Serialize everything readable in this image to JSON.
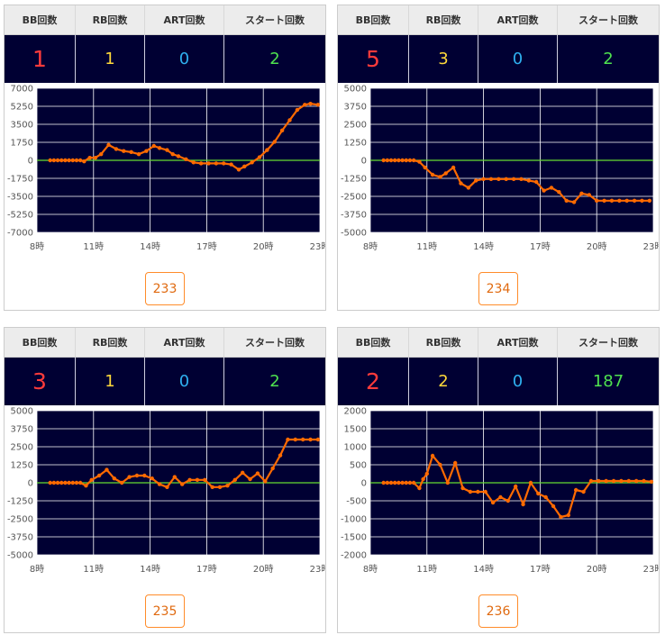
{
  "headers": {
    "bb": "BB回数",
    "rb": "RB回数",
    "art": "ART回数",
    "start": "スタート回数"
  },
  "colors": {
    "plot_bg": "#000033",
    "line": "#ff6a00",
    "zero_line": "#66dd33",
    "grid": "#ffffff",
    "header_bg": "#ececec",
    "button_border": "#ff8c2a"
  },
  "machines": [
    {
      "bb": "1",
      "rb": "1",
      "art": "0",
      "start": "2",
      "number": "233",
      "chart_data": {
        "type": "line",
        "x_ticks": [
          "8時",
          "11時",
          "14時",
          "17時",
          "20時",
          "23時"
        ],
        "y_ticks": [
          "7000",
          "5250",
          "3500",
          "1750",
          "0",
          "-1750",
          "-3500",
          "-5250",
          "-7000"
        ],
        "xlim": [
          8,
          23
        ],
        "ylim": [
          -7000,
          7000
        ],
        "zero_line": true,
        "x": [
          8.7,
          8.9,
          9.1,
          9.3,
          9.5,
          9.7,
          9.9,
          10.1,
          10.3,
          10.5,
          10.8,
          11.1,
          11.4,
          11.8,
          12.2,
          12.6,
          13.0,
          13.4,
          13.8,
          14.2,
          14.5,
          14.9,
          15.2,
          15.5,
          15.9,
          16.3,
          16.7,
          17.1,
          17.5,
          17.9,
          18.3,
          18.7,
          19.0,
          19.4,
          19.8,
          20.2,
          20.6,
          21.0,
          21.4,
          21.8,
          22.2,
          22.5,
          22.9
        ],
        "y": [
          0,
          0,
          0,
          0,
          0,
          0,
          0,
          0,
          0,
          -100,
          250,
          250,
          600,
          1500,
          1100,
          900,
          800,
          600,
          900,
          1400,
          1200,
          1000,
          600,
          400,
          100,
          -200,
          -300,
          -300,
          -300,
          -300,
          -400,
          -900,
          -600,
          -200,
          300,
          1000,
          1800,
          2900,
          3900,
          4900,
          5400,
          5500,
          5400
        ]
      }
    },
    {
      "bb": "5",
      "rb": "3",
      "art": "0",
      "start": "2",
      "number": "234",
      "chart_data": {
        "type": "line",
        "x_ticks": [
          "8時",
          "11時",
          "14時",
          "17時",
          "20時",
          "23時"
        ],
        "y_ticks": [
          "5000",
          "3750",
          "2500",
          "1250",
          "0",
          "-1250",
          "-2500",
          "-3750",
          "-5000"
        ],
        "xlim": [
          8,
          23
        ],
        "ylim": [
          -5000,
          5000
        ],
        "zero_line": true,
        "x": [
          8.7,
          8.9,
          9.1,
          9.3,
          9.5,
          9.7,
          9.9,
          10.1,
          10.3,
          10.6,
          10.9,
          11.3,
          11.7,
          12.0,
          12.4,
          12.8,
          13.2,
          13.6,
          14.0,
          14.4,
          14.8,
          15.2,
          15.6,
          16.0,
          16.4,
          16.8,
          17.2,
          17.6,
          18.0,
          18.4,
          18.8,
          19.2,
          19.6,
          20.0,
          20.4,
          20.8,
          21.2,
          21.6,
          22.0,
          22.4,
          22.8
        ],
        "y": [
          0,
          0,
          0,
          0,
          0,
          0,
          0,
          0,
          0,
          -100,
          -500,
          -1000,
          -1150,
          -900,
          -500,
          -1600,
          -1900,
          -1400,
          -1300,
          -1300,
          -1300,
          -1300,
          -1300,
          -1300,
          -1400,
          -1500,
          -2100,
          -1900,
          -2200,
          -2800,
          -2900,
          -2300,
          -2400,
          -2800,
          -2800,
          -2800,
          -2800,
          -2800,
          -2800,
          -2800,
          -2800
        ]
      }
    },
    {
      "bb": "3",
      "rb": "1",
      "art": "0",
      "start": "2",
      "number": "235",
      "chart_data": {
        "type": "line",
        "x_ticks": [
          "8時",
          "11時",
          "14時",
          "17時",
          "20時",
          "23時"
        ],
        "y_ticks": [
          "5000",
          "3750",
          "2500",
          "1250",
          "0",
          "-1250",
          "-2500",
          "-3750",
          "-5000"
        ],
        "xlim": [
          8,
          23
        ],
        "ylim": [
          -5000,
          5000
        ],
        "zero_line": true,
        "x": [
          8.7,
          8.9,
          9.1,
          9.3,
          9.5,
          9.7,
          9.9,
          10.1,
          10.3,
          10.6,
          10.9,
          11.3,
          11.7,
          12.1,
          12.5,
          12.9,
          13.3,
          13.7,
          14.1,
          14.5,
          14.9,
          15.3,
          15.7,
          16.1,
          16.5,
          16.9,
          17.3,
          17.7,
          18.1,
          18.5,
          18.9,
          19.3,
          19.7,
          20.1,
          20.5,
          20.9,
          21.3,
          21.7,
          22.1,
          22.5,
          22.9
        ],
        "y": [
          0,
          0,
          0,
          0,
          0,
          0,
          0,
          0,
          0,
          -200,
          200,
          500,
          900,
          300,
          0,
          400,
          500,
          500,
          300,
          -100,
          -300,
          400,
          -100,
          200,
          200,
          200,
          -300,
          -300,
          -200,
          200,
          700,
          250,
          650,
          100,
          1000,
          1900,
          3000,
          3000,
          3000,
          3000,
          3000
        ]
      }
    },
    {
      "bb": "2",
      "rb": "2",
      "art": "0",
      "start": "187",
      "number": "236",
      "chart_data": {
        "type": "line",
        "x_ticks": [
          "8時",
          "11時",
          "14時",
          "17時",
          "20時",
          "23時"
        ],
        "y_ticks": [
          "2000",
          "1500",
          "1000",
          "500",
          "0",
          "-500",
          "-1000",
          "-1500",
          "-2000"
        ],
        "xlim": [
          8,
          23
        ],
        "ylim": [
          -2000,
          2000
        ],
        "zero_line": true,
        "x": [
          8.7,
          8.9,
          9.1,
          9.3,
          9.5,
          9.7,
          9.9,
          10.1,
          10.3,
          10.6,
          10.8,
          11.0,
          11.3,
          11.7,
          12.1,
          12.5,
          12.9,
          13.3,
          13.7,
          14.1,
          14.5,
          14.9,
          15.3,
          15.7,
          16.1,
          16.5,
          16.9,
          17.3,
          17.7,
          18.1,
          18.5,
          18.9,
          19.3,
          19.7,
          20.1,
          20.5,
          20.9,
          21.3,
          21.7,
          22.1,
          22.5,
          22.9
        ],
        "y": [
          0,
          0,
          0,
          0,
          0,
          0,
          0,
          0,
          0,
          -150,
          100,
          250,
          750,
          500,
          0,
          550,
          -150,
          -250,
          -250,
          -250,
          -550,
          -400,
          -500,
          -100,
          -600,
          0,
          -300,
          -400,
          -650,
          -950,
          -900,
          -200,
          -250,
          50,
          50,
          50,
          50,
          50,
          50,
          50,
          50,
          30
        ]
      }
    }
  ]
}
